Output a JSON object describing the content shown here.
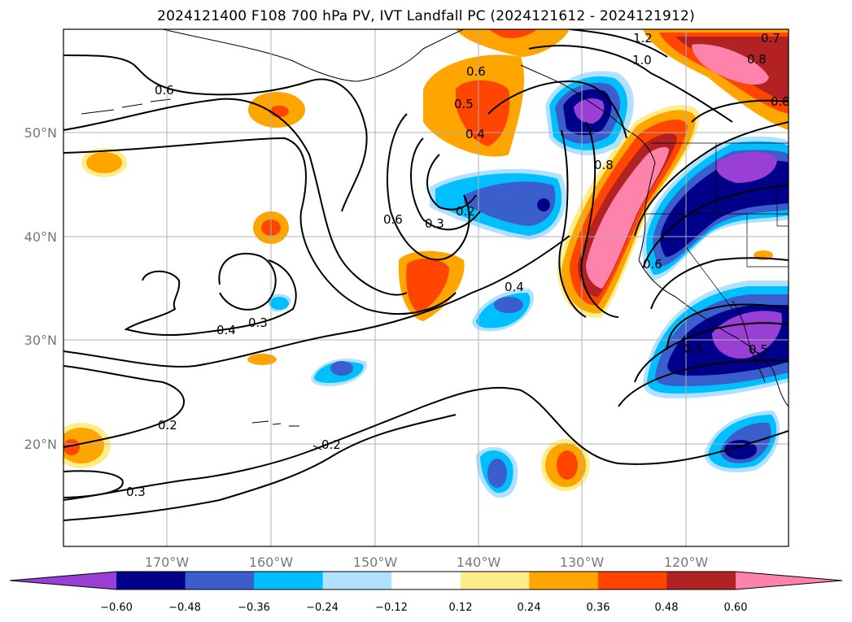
{
  "title": "2024121400 F108 700 hPa PV, IVT Landfall PC (2024121612 - 2024121912)",
  "map": {
    "lon_labels": [
      "170°W",
      "160°W",
      "150°W",
      "140°W",
      "130°W",
      "120°W"
    ],
    "lat_labels": [
      "50°N",
      "40°N",
      "30°N",
      "20°N"
    ],
    "gridlines": true
  },
  "contour_labels": [
    "1.2",
    "1.0",
    "0.8",
    "0.8",
    "0.7",
    "0.6",
    "0.6",
    "0.5",
    "0.4",
    "0.2",
    "0.6",
    "0.3",
    "0.8",
    "0.6",
    "0.4",
    "0.3",
    "0.4",
    "0.5",
    "0.5",
    "0.2",
    "0.2",
    "0.3"
  ],
  "colorbar": {
    "ticks": [
      "−0.60",
      "−0.48",
      "−0.36",
      "−0.24",
      "−0.12",
      "0.12",
      "0.24",
      "0.36",
      "0.48",
      "0.60"
    ],
    "colors": [
      "#9a3fd6",
      "#00008b",
      "#3a5fcd",
      "#00bfff",
      "#b0e2ff",
      "#ffffff",
      "#ffec8b",
      "#ffa500",
      "#ff4500",
      "#b22222",
      "#ff82ab"
    ],
    "extend": "both"
  }
}
